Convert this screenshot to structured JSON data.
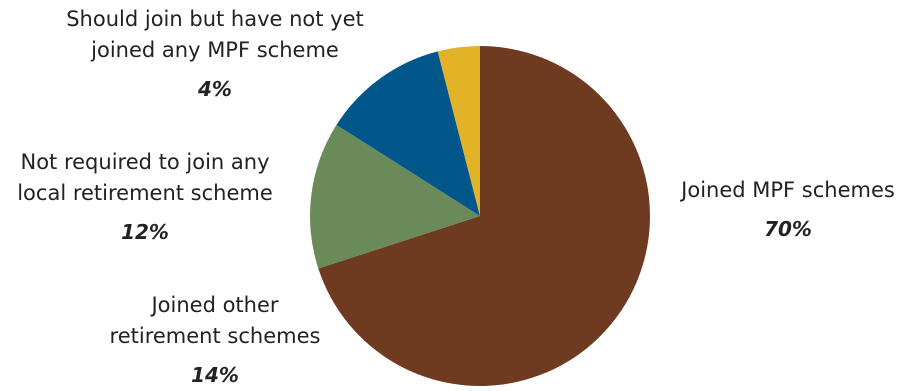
{
  "chart_data": {
    "type": "pie",
    "title": "",
    "start_angle_deg": 0,
    "direction": "clockwise",
    "slices": [
      {
        "label_lines": [
          "Joined MPF schemes"
        ],
        "value": 70,
        "pct_label": "70%",
        "color": "#6e3b21"
      },
      {
        "label_lines": [
          "Joined other",
          "retirement schemes"
        ],
        "value": 14,
        "pct_label": "14%",
        "color": "#6a8a5a"
      },
      {
        "label_lines": [
          "Not required to join any",
          "local retirement scheme"
        ],
        "value": 12,
        "pct_label": "12%",
        "color": "#01578a"
      },
      {
        "label_lines": [
          "Should join but have not yet",
          "joined any MPF scheme"
        ],
        "value": 4,
        "pct_label": "4%",
        "color": "#e2b327"
      }
    ]
  }
}
